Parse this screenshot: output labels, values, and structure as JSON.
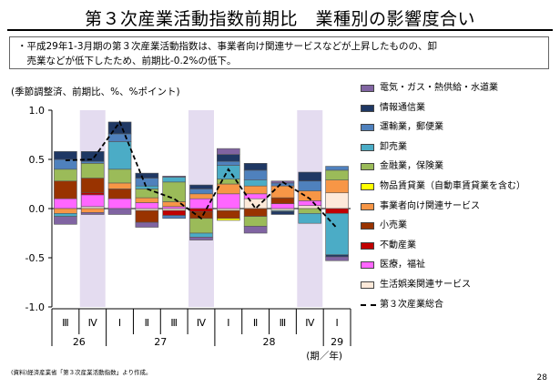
{
  "page": {
    "title": "第３次産業活動指数前期比　業種別の影響度合い",
    "summary_line1": "・平成29年1-3月期の第３次産業活動指数は、事業者向け関連サービスなどが上昇したものの、卸",
    "summary_line2": "　売業などが低下したため、前期比-0.2%の低下。",
    "unit_note": "(季節調整済、前期比、%、%ポイント)",
    "source_note": "(資料)経済産業省「第３次産業活動指数」より作成。",
    "page_number": "28"
  },
  "chart_data": {
    "type": "bar",
    "stacked": true,
    "ylim": [
      -1.0,
      1.0
    ],
    "y_ticks": [
      "1.0",
      "0.5",
      "0.0",
      "-0.5",
      "-1.0"
    ],
    "y_tick_values": [
      1.0,
      0.5,
      0.0,
      -0.5,
      -1.0
    ],
    "quarters": [
      "Ⅲ",
      "Ⅳ",
      "Ⅰ",
      "Ⅱ",
      "Ⅲ",
      "Ⅳ",
      "Ⅰ",
      "Ⅱ",
      "Ⅲ",
      "Ⅳ",
      "Ⅰ"
    ],
    "years": [
      {
        "label": "26",
        "start": 0,
        "end": 1
      },
      {
        "label": "27",
        "start": 2,
        "end": 5
      },
      {
        "label": "28",
        "start": 6,
        "end": 9
      },
      {
        "label": "29",
        "start": 10,
        "end": 10
      }
    ],
    "x_unit_label": "(期／年)",
    "shaded_quarters": [
      1,
      5,
      9
    ],
    "series": [
      {
        "name": "生活娯楽関連サービス",
        "color": "#fde9d9",
        "values": [
          0.0,
          0.02,
          0.0,
          -0.02,
          -0.02,
          0.0,
          -0.02,
          0.1,
          -0.02,
          0.03,
          0.16
        ]
      },
      {
        "name": "医療，福祉",
        "color": "#ff66ff",
        "values": [
          0.1,
          0.12,
          0.1,
          0.06,
          0.02,
          0.1,
          0.15,
          0.05,
          0.05,
          0.05,
          0.0
        ]
      },
      {
        "name": "不動産業",
        "color": "#c00000",
        "values": [
          0.0,
          0.02,
          0.0,
          0.0,
          -0.05,
          -0.03,
          0.0,
          0.0,
          0.0,
          0.0,
          -0.05
        ]
      },
      {
        "name": "小売業",
        "color": "#993300",
        "values": [
          0.18,
          0.15,
          0.1,
          -0.12,
          0.0,
          -0.07,
          -0.08,
          -0.08,
          0.06,
          0.0,
          0.0
        ]
      },
      {
        "name": "事業者向け関連サービス",
        "color": "#f79646",
        "values": [
          -0.05,
          -0.04,
          0.06,
          0.05,
          0.05,
          0.05,
          0.1,
          0.08,
          0.12,
          0.1,
          0.13
        ]
      },
      {
        "name": "物品賃貸業（自動車賃貸業を含む）",
        "color": "#ffff00",
        "values": [
          0.0,
          0.0,
          0.0,
          0.0,
          0.0,
          0.0,
          -0.02,
          0.0,
          0.0,
          0.0,
          0.0
        ]
      },
      {
        "name": "金融業，保険業",
        "color": "#9bbb59",
        "values": [
          0.12,
          0.15,
          0.14,
          0.09,
          0.2,
          -0.15,
          0.05,
          -0.1,
          0.0,
          -0.05,
          0.1
        ]
      },
      {
        "name": "卸売業",
        "color": "#4bacc6",
        "values": [
          -0.03,
          0.0,
          0.28,
          0.03,
          0.05,
          -0.04,
          0.14,
          0.06,
          -0.01,
          -0.1,
          -0.42
        ]
      },
      {
        "name": "運輸業，郵便業",
        "color": "#4f81bd",
        "values": [
          0.1,
          0.02,
          0.08,
          0.08,
          -0.03,
          0.05,
          0.04,
          0.1,
          0.03,
          0.1,
          0.04
        ]
      },
      {
        "name": "情報通信業",
        "color": "#1f3864",
        "values": [
          0.08,
          0.1,
          0.12,
          0.05,
          0.0,
          0.04,
          0.07,
          0.07,
          -0.03,
          0.09,
          -0.02
        ]
      },
      {
        "name": "電気・ガス・熱供給・水道業",
        "color": "#8064a2",
        "values": [
          -0.08,
          -0.02,
          -0.06,
          -0.05,
          0.01,
          -0.03,
          0.06,
          -0.07,
          0.02,
          0.0,
          -0.04
        ]
      }
    ],
    "line": {
      "name": "第３次産業総合",
      "values": [
        0.49,
        0.5,
        0.88,
        0.2,
        0.1,
        -0.1,
        0.4,
        0.0,
        0.27,
        0.1,
        -0.2
      ]
    }
  }
}
